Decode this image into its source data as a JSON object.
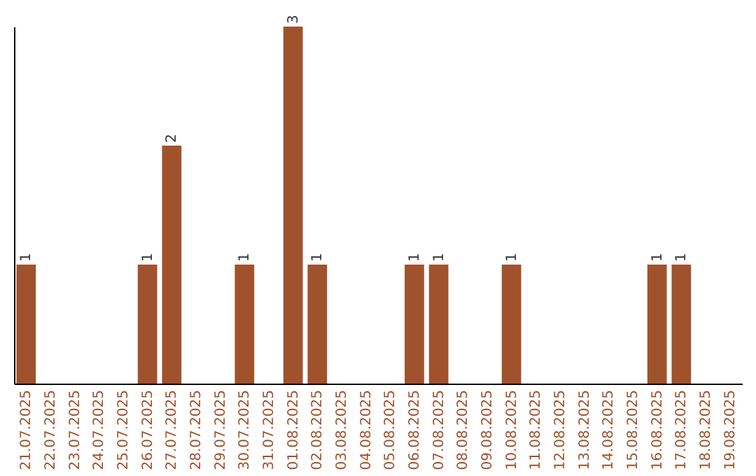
{
  "chart_data": {
    "type": "bar",
    "categories": [
      "21.07.2025",
      "22.07.2025",
      "23.07.2025",
      "24.07.2025",
      "25.07.2025",
      "26.07.2025",
      "27.07.2025",
      "28.07.2025",
      "29.07.2025",
      "30.07.2025",
      "31.07.2025",
      "01.08.2025",
      "02.08.2025",
      "03.08.2025",
      "04.08.2025",
      "05.08.2025",
      "06.08.2025",
      "07.08.2025",
      "08.08.2025",
      "09.08.2025",
      "10.08.2025",
      "11.08.2025",
      "12.08.2025",
      "13.08.2025",
      "14.08.2025",
      "15.08.2025",
      "16.08.2025",
      "17.08.2025",
      "18.08.2025",
      "19.08.2025"
    ],
    "values": [
      1,
      0,
      0,
      0,
      0,
      1,
      2,
      0,
      0,
      1,
      0,
      3,
      1,
      0,
      0,
      0,
      1,
      1,
      0,
      0,
      1,
      0,
      0,
      0,
      0,
      0,
      1,
      1,
      0,
      0
    ],
    "value_labels": [
      "1",
      null,
      null,
      null,
      null,
      "1",
      "2",
      null,
      null,
      "1",
      null,
      "3",
      "1",
      null,
      null,
      null,
      "1",
      "1",
      null,
      null,
      "1",
      null,
      null,
      null,
      null,
      null,
      "1",
      "1",
      null,
      null
    ],
    "color": "#a0522d"
  }
}
